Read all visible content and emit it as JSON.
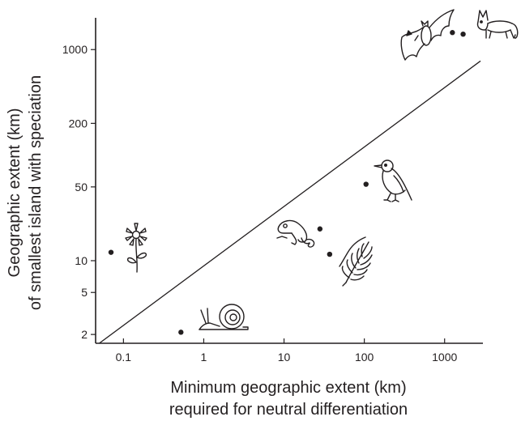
{
  "chart_data": {
    "type": "scatter",
    "x_scale": "log",
    "y_scale": "log",
    "xlim": [
      0.045,
      3000
    ],
    "ylim": [
      1.65,
      2000
    ],
    "grid": false,
    "xlabel": [
      "Minimum geographic extent (km)",
      "required for neutral differentiation"
    ],
    "ylabel": [
      "Geographic extent (km)",
      "of smallest island with speciation"
    ],
    "x_ticks": [
      {
        "value": 0.1,
        "label": "0.1"
      },
      {
        "value": 1,
        "label": "1"
      },
      {
        "value": 10,
        "label": "10"
      },
      {
        "value": 100,
        "label": "100"
      },
      {
        "value": 1000,
        "label": "1000"
      }
    ],
    "y_ticks": [
      {
        "value": 2,
        "label": "2"
      },
      {
        "value": 5,
        "label": "5"
      },
      {
        "value": 10,
        "label": "10"
      },
      {
        "value": 50,
        "label": "50"
      },
      {
        "value": 200,
        "label": "200"
      },
      {
        "value": 1000,
        "label": "1000"
      }
    ],
    "points": [
      {
        "organism": "flower",
        "x": 0.07,
        "y": 12
      },
      {
        "organism": "snail",
        "x": 0.52,
        "y": 2.1
      },
      {
        "organism": "lizard",
        "x": 28,
        "y": 20
      },
      {
        "organism": "fern",
        "x": 37,
        "y": 11.5
      },
      {
        "organism": "bird",
        "x": 105,
        "y": 53
      },
      {
        "organism": "bat",
        "x": 1250,
        "y": 1450
      },
      {
        "organism": "fox",
        "x": 1700,
        "y": 1400
      }
    ],
    "line": {
      "x": [
        0.05,
        2800
      ],
      "y": [
        1.65,
        780
      ]
    },
    "colors": {
      "ink": "#231f20",
      "background": "#ffffff"
    }
  }
}
